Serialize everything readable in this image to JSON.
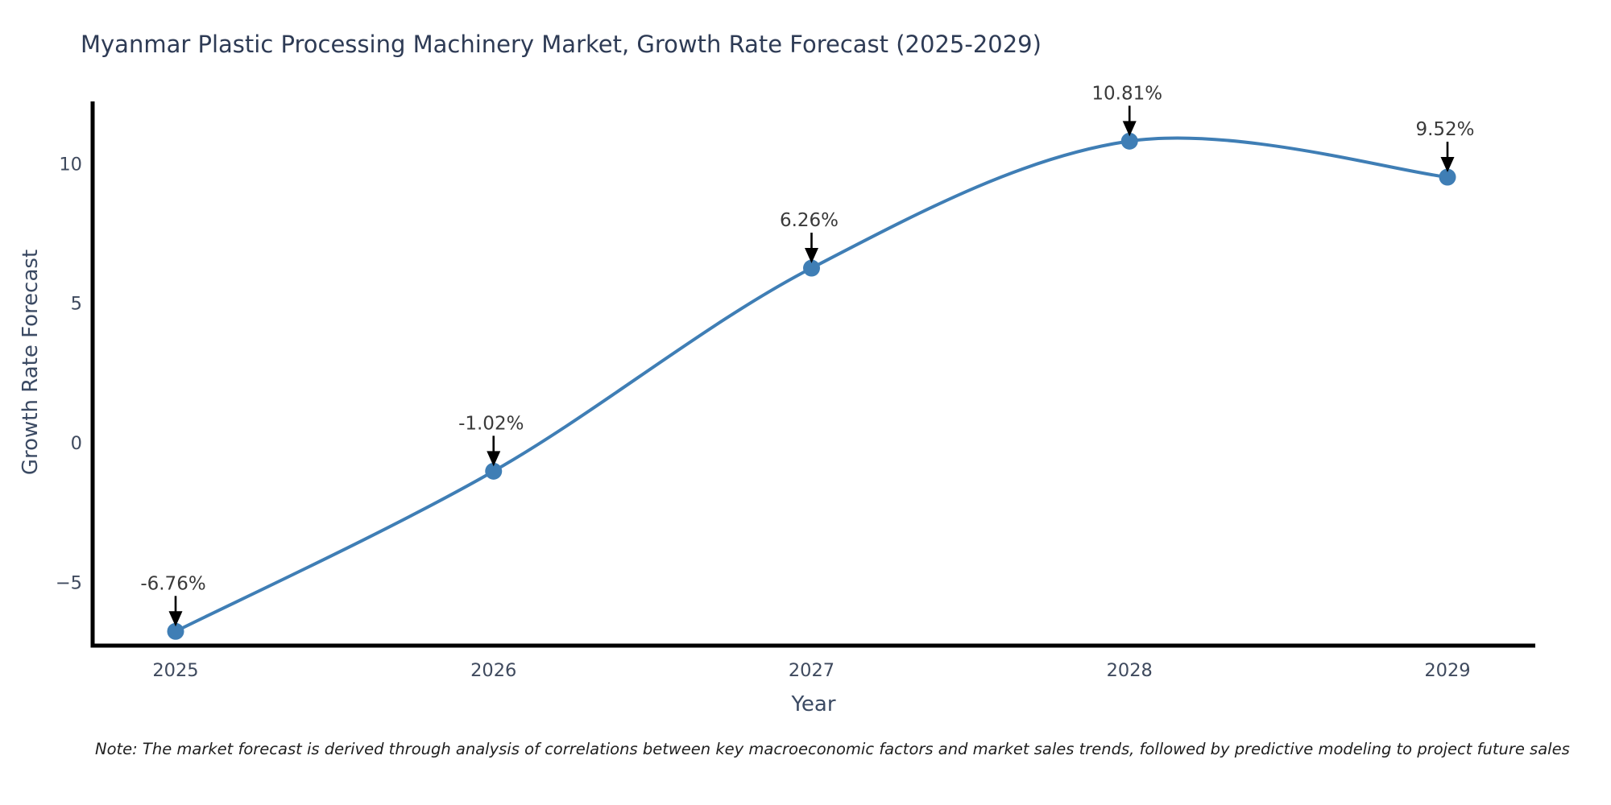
{
  "title": "Myanmar Plastic Processing Machinery Market, Growth Rate Forecast (2025-2029)",
  "note": "Note: The market forecast is derived through analysis of correlations between key macroeconomic factors and market sales trends, followed by predictive modeling to project future sales",
  "chart_data": {
    "type": "line",
    "title": "Myanmar Plastic Processing Machinery Market, Growth Rate Forecast (2025-2029)",
    "x": [
      2025,
      2026,
      2027,
      2028,
      2029
    ],
    "series": [
      {
        "name": "Growth Rate Forecast",
        "values": [
          -6.76,
          -1.02,
          6.26,
          10.81,
          9.52
        ]
      }
    ],
    "point_labels": [
      "-6.76%",
      "-1.02%",
      "6.26%",
      "10.81%",
      "9.52%"
    ],
    "xlabel": "Year",
    "ylabel": "Growth Rate Forecast",
    "yticks": [
      "−5",
      "0",
      "5",
      "10"
    ],
    "ytick_values": [
      -5,
      0,
      5,
      10
    ],
    "ylim": [
      -7.3,
      12.2
    ],
    "grid": false,
    "legend": "none",
    "line_shape": "spline",
    "colors": {
      "line": "#3f7eb5",
      "marker": "#3f7eb5",
      "annotation_arrow": "#000000",
      "annotation_text": "#3a3a3a",
      "axis_line": "#000000",
      "tick_text": "#3f4a5e",
      "title_text": "#2e3b55"
    }
  }
}
